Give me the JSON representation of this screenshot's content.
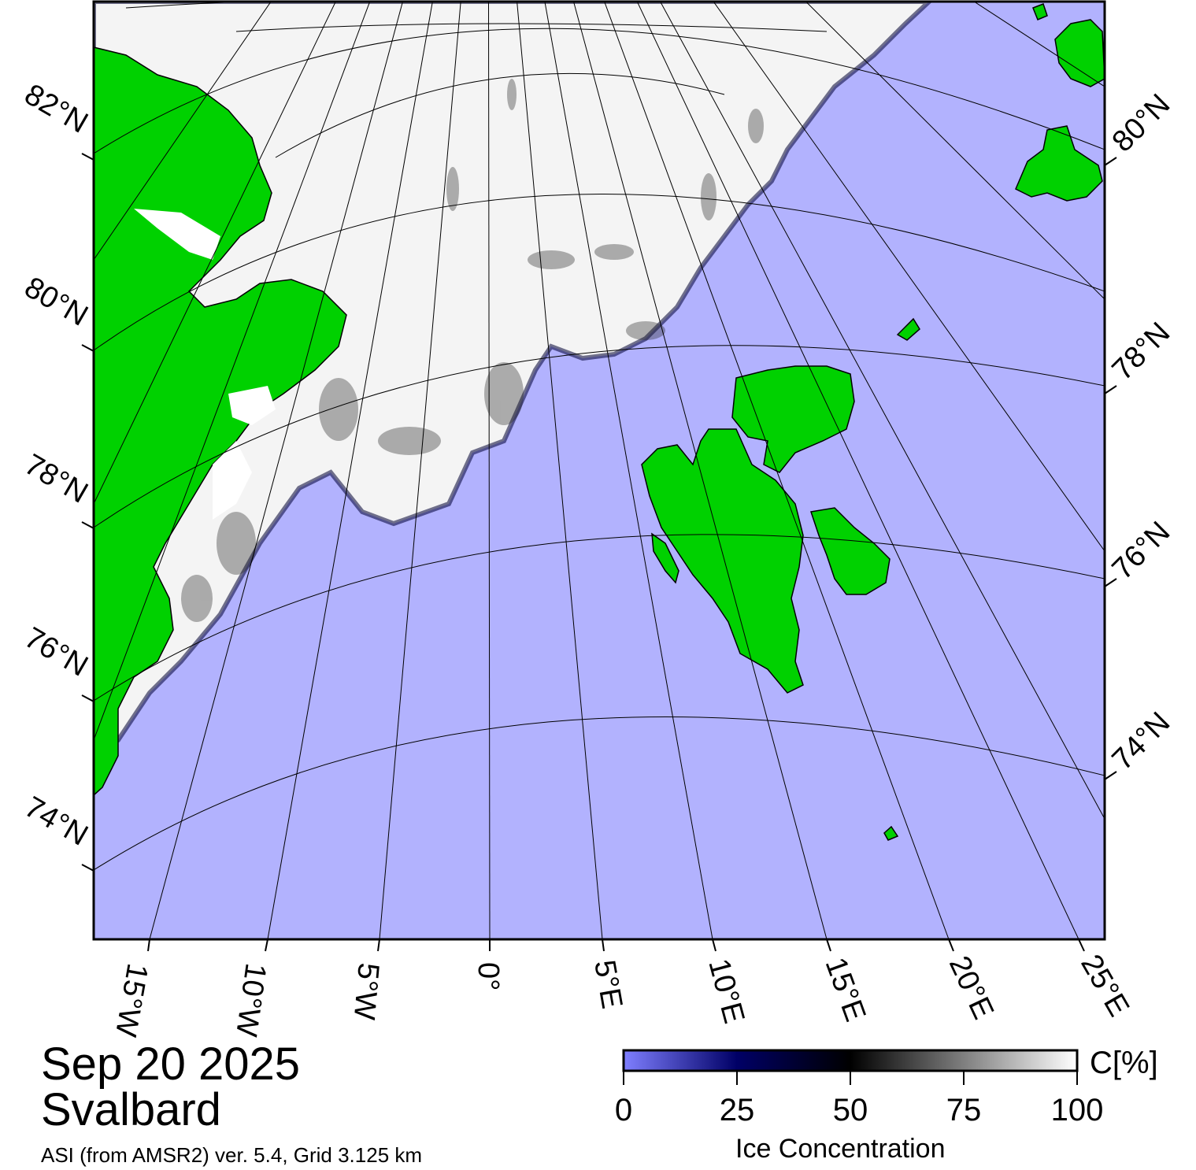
{
  "header": {
    "date": "Sep 20 2025",
    "region": "Svalbard",
    "source": "ASI (from AMSR2) ver. 5.4,  Grid 3.125 km"
  },
  "colors": {
    "open_water": "#b2b2fe",
    "land": "#00d100",
    "ice_high": "#ffffff",
    "ice_mid": "#000000",
    "ice_low": "#000066",
    "coast_mask": "#808080"
  },
  "map_labels": {
    "lat_left": [
      "82°N",
      "80°N",
      "78°N",
      "76°N",
      "74°N"
    ],
    "lat_right": [
      "80°N",
      "78°N",
      "76°N",
      "74°N"
    ],
    "lon_bottom": [
      "15°W",
      "10°W",
      "5°W",
      "0°",
      "5°E",
      "10°E",
      "15°E",
      "20°E",
      "25°E"
    ]
  },
  "colorbar": {
    "unit": "C[%]",
    "title": "Ice Concentration",
    "ticks": [
      "0",
      "25",
      "50",
      "75",
      "100"
    ]
  }
}
